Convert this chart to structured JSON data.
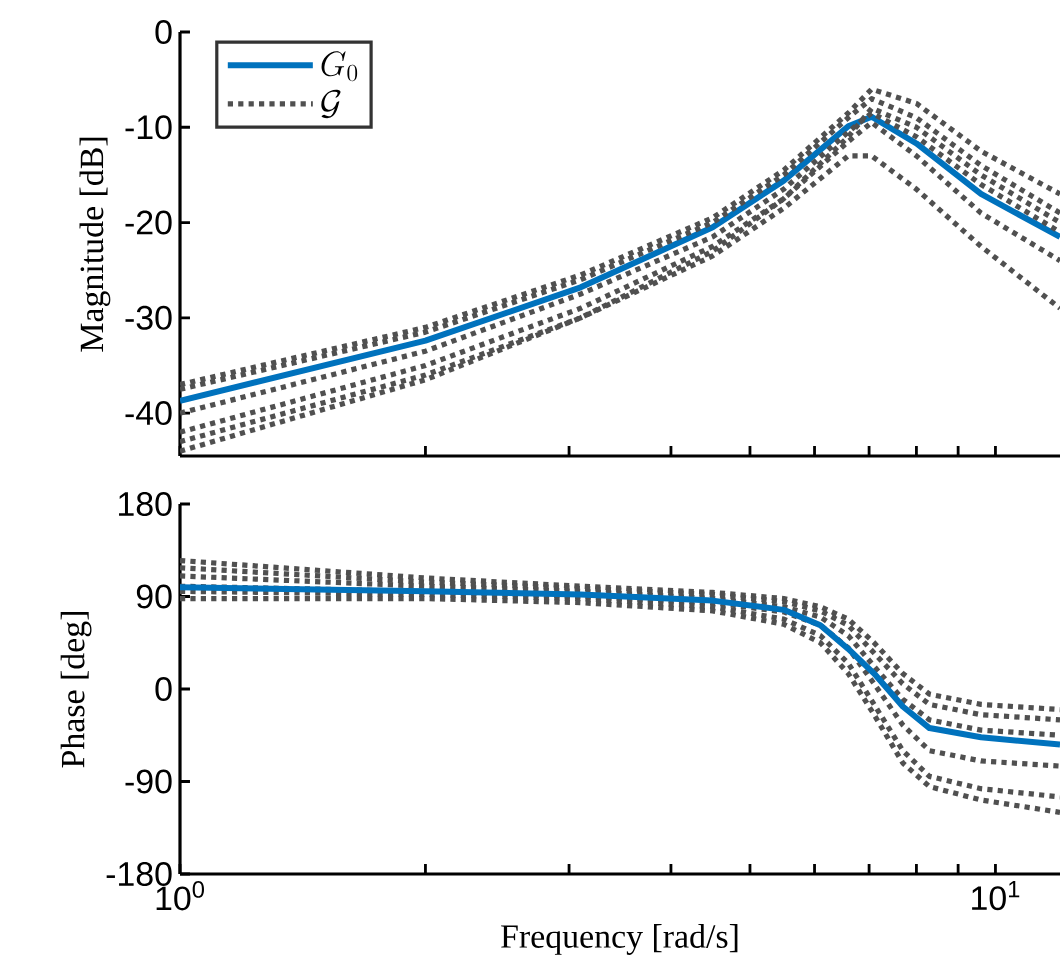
{
  "chart_data": [
    {
      "type": "line",
      "ylabel": "Magnitude [dB]",
      "log": "x",
      "xlim": [
        1,
        12
      ],
      "ylim": [
        -44.5,
        0
      ],
      "tick_labels": "y",
      "legend": "top left",
      "xticks": [
        {
          "value": 1,
          "label": null
        },
        {
          "value": 2,
          "label": null
        },
        {
          "value": 3,
          "label": null
        },
        {
          "value": 4,
          "label": null
        },
        {
          "value": 5,
          "label": null
        },
        {
          "value": 6,
          "label": null
        },
        {
          "value": 7,
          "label": null
        },
        {
          "value": 8,
          "label": null
        },
        {
          "value": 9,
          "label": null
        },
        {
          "value": 10,
          "label": null
        }
      ],
      "yticks": [
        -40,
        -30,
        -20,
        -10,
        0
      ],
      "x": [
        1,
        2,
        3.1,
        4.5,
        5.5,
        6.6,
        7.05,
        8,
        9.6,
        12
      ],
      "series": [
        {
          "name": "G_0",
          "color": "#0072bd",
          "line_style": "solid",
          "values": [
            -38.7,
            -32.4,
            -26.8,
            -20.5,
            -15.6,
            -9.9,
            -8.9,
            -11.7,
            -17,
            -21.5
          ]
        },
        {
          "name": "\\mathcal{G}",
          "color": "#505050",
          "line_style": "dotted",
          "values": [
            -37,
            -31,
            -25.5,
            -19.5,
            -14.5,
            -8.5,
            -6,
            -7.5,
            -12.5,
            -17
          ]
        },
        {
          "color": "#505050",
          "line_style": "dotted",
          "values": [
            -37.5,
            -31.5,
            -26,
            -20,
            -15,
            -9,
            -7,
            -9,
            -14,
            -19
          ]
        },
        {
          "color": "#505050",
          "line_style": "dotted",
          "values": [
            -40,
            -33.5,
            -27.5,
            -21.5,
            -16.5,
            -10.5,
            -8.5,
            -11,
            -16,
            -21
          ]
        },
        {
          "color": "#505050",
          "line_style": "dotted",
          "values": [
            -42,
            -35,
            -29,
            -22.5,
            -17.5,
            -11.5,
            -9.5,
            -13,
            -19,
            -24
          ]
        },
        {
          "color": "#505050",
          "line_style": "dotted",
          "values": [
            -43,
            -36,
            -30,
            -23.5,
            -18.5,
            -13,
            -13,
            -16.5,
            -22.5,
            -29
          ]
        },
        {
          "color": "#505050",
          "line_style": "dotted",
          "values": [
            -44,
            -36.5,
            -30,
            -23,
            -17.5,
            -11,
            -8,
            -10,
            -15,
            -20
          ]
        }
      ]
    },
    {
      "type": "line",
      "xlabel": "Frequency [rad/s]",
      "ylabel": "Phase [deg]",
      "log": "x",
      "xlim": [
        1,
        12
      ],
      "ylim": [
        -180,
        180
      ],
      "xticks": [
        {
          "value": 1,
          "label": "10$^{0}$"
        },
        {
          "value": 2,
          "label": null
        },
        {
          "value": 3,
          "label": null
        },
        {
          "value": 4,
          "label": null
        },
        {
          "value": 5,
          "label": null
        },
        {
          "value": 6,
          "label": null
        },
        {
          "value": 7,
          "label": null
        },
        {
          "value": 8,
          "label": null
        },
        {
          "value": 9,
          "label": null
        },
        {
          "value": 10,
          "label": "10$^{1}$"
        }
      ],
      "yticks": [
        -180,
        -90,
        0,
        90,
        180
      ],
      "x": [
        1,
        2,
        3.1,
        4.5,
        5.5,
        6.1,
        6.6,
        7.1,
        7.7,
        8.3,
        9.6,
        12
      ],
      "series": [
        {
          "color": "#505050",
          "line_style": "dotted",
          "values": [
            125,
            108,
            100,
            94,
            88,
            80,
            68,
            45,
            15,
            -5,
            -15,
            -20
          ]
        },
        {
          "color": "#505050",
          "line_style": "dotted",
          "values": [
            118,
            104,
            98,
            92,
            85,
            76,
            62,
            35,
            5,
            -15,
            -25,
            -30
          ]
        },
        {
          "color": "#505050",
          "line_style": "dotted",
          "values": [
            110,
            100,
            95,
            88,
            80,
            70,
            52,
            22,
            -10,
            -30,
            -40,
            -45
          ]
        },
        {
          "color": "#505050",
          "line_style": "dotted",
          "values": [
            100,
            95,
            90,
            84,
            75,
            62,
            40,
            5,
            -35,
            -60,
            -70,
            -75
          ]
        },
        {
          "color": "#505050",
          "line_style": "dotted",
          "values": [
            95,
            92,
            88,
            80,
            68,
            52,
            25,
            -15,
            -60,
            -85,
            -97,
            -105
          ]
        },
        {
          "color": "#505050",
          "line_style": "dotted",
          "values": [
            88,
            88,
            84,
            76,
            63,
            45,
            15,
            -25,
            -72,
            -95,
            -108,
            -120
          ]
        },
        {
          "color": "#0072bd",
          "line_style": "solid",
          "values": [
            99,
            95,
            92,
            86,
            77,
            62,
            39,
            15,
            -17,
            -38,
            -47,
            -54
          ]
        }
      ]
    }
  ]
}
